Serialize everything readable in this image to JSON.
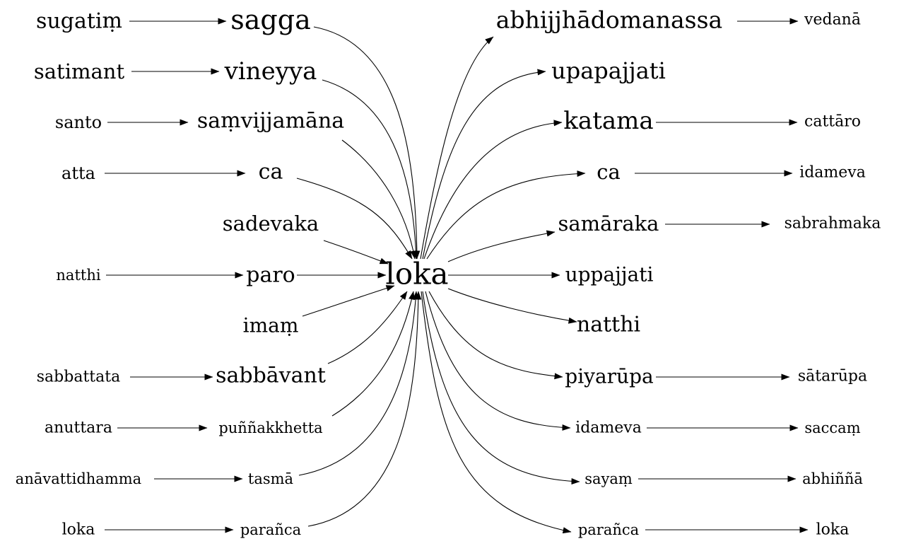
{
  "diagram": {
    "center": "loka",
    "colors": {
      "ink": "#000000",
      "background": "#ffffff"
    },
    "nodes": {
      "sugatim": "sugatiṃ",
      "sagga": "sagga",
      "satimant": "satimant",
      "vineyya": "vineyya",
      "santo": "santo",
      "samvijjamana": "saṃvijjamāna",
      "atta": "atta",
      "ca_left": "ca",
      "sadevaka": "sadevaka",
      "natthi_left": "natthi",
      "paro": "paro",
      "imam": "imaṃ",
      "sabbattata": "sabbattata",
      "sabbavant": "sabbāvant",
      "anuttara": "anuttara",
      "punnakkhetta": "puññakkhetta",
      "anavattidhamma": "anāvattidhamma",
      "tasma": "tasmā",
      "loka_left": "loka",
      "paranca_left": "parañca",
      "loka": "loka",
      "abhijjhadomanassa": "abhijjhādomanassa",
      "vedana": "vedanā",
      "upapajjati": "upapajjati",
      "katama": "katama",
      "cattaro": "cattāro",
      "ca_right": "ca",
      "idameva_top": "idameva",
      "samaraka": "samāraka",
      "sabrahmaka": "sabrahmaka",
      "uppajjati": "uppajjati",
      "natthi_right": "natthi",
      "piyarupa": "piyarūpa",
      "satarupa": "sātarūpa",
      "idameva_bottom": "idameva",
      "saccam": "saccaṃ",
      "sayam": "sayaṃ",
      "abhinna": "abhiññā",
      "paranca_right": "parañca",
      "loka_right": "loka"
    }
  }
}
